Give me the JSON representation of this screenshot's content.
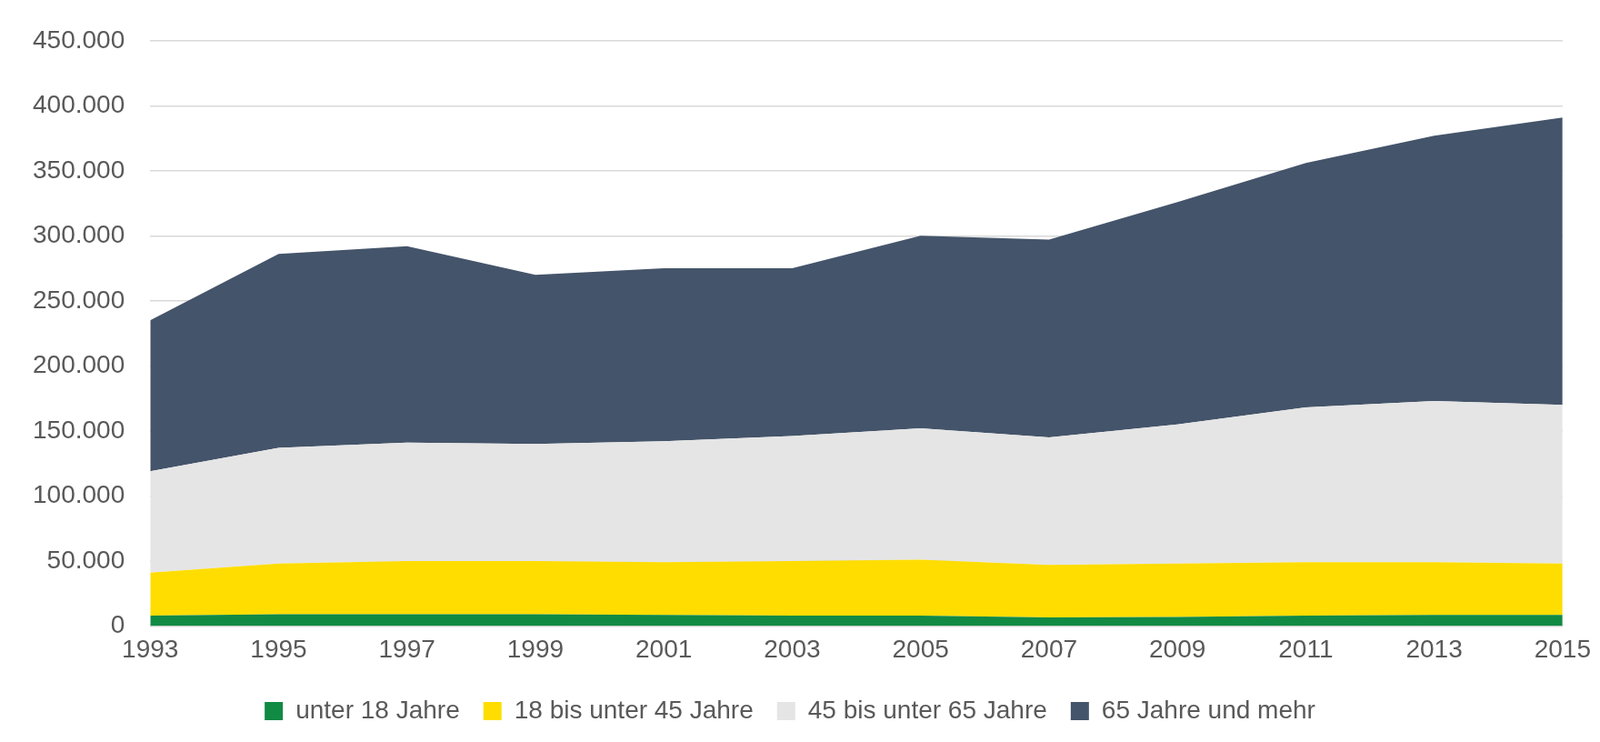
{
  "chart_data": {
    "type": "area",
    "stacked": true,
    "grid": true,
    "legend": "bottom",
    "categories": [
      "1993",
      "1995",
      "1997",
      "1999",
      "2001",
      "2003",
      "2005",
      "2007",
      "2009",
      "2011",
      "2013",
      "2015"
    ],
    "series": [
      {
        "name": "unter 18 Jahre",
        "color": "#118a44",
        "values": [
          8000,
          9000,
          9000,
          9000,
          8500,
          8000,
          8000,
          6500,
          7000,
          8000,
          8500,
          8500
        ]
      },
      {
        "name": "18 bis unter 45 Jahre",
        "color": "#ffdd00",
        "values": [
          33000,
          39000,
          41000,
          41000,
          40500,
          42000,
          43000,
          40500,
          41000,
          41000,
          40500,
          39500
        ]
      },
      {
        "name": "45 bis unter 65 Jahre",
        "color": "#e5e5e5",
        "values": [
          78000,
          89000,
          91000,
          90000,
          93000,
          96000,
          101000,
          98000,
          107000,
          119000,
          124000,
          122000
        ]
      },
      {
        "name": "65 Jahre und mehr",
        "color": "#44546a",
        "values": [
          116000,
          149000,
          151000,
          130000,
          133000,
          129000,
          148000,
          152000,
          171000,
          188000,
          204000,
          221000
        ]
      }
    ],
    "ylim": [
      0,
      450000
    ],
    "yticks": [
      0,
      {
        "value": 50000,
        "label": "50.000"
      },
      {
        "value": 100000,
        "label": "100.000"
      },
      {
        "value": 150000,
        "label": "150.000"
      },
      {
        "value": 200000,
        "label": "200.000"
      },
      {
        "value": 250000,
        "label": "250.000"
      },
      {
        "value": 300000,
        "label": "300.000"
      },
      {
        "value": 350000,
        "label": "350.000"
      },
      {
        "value": 400000,
        "label": "400.000"
      },
      {
        "value": 450000,
        "label": "450.000"
      }
    ]
  }
}
